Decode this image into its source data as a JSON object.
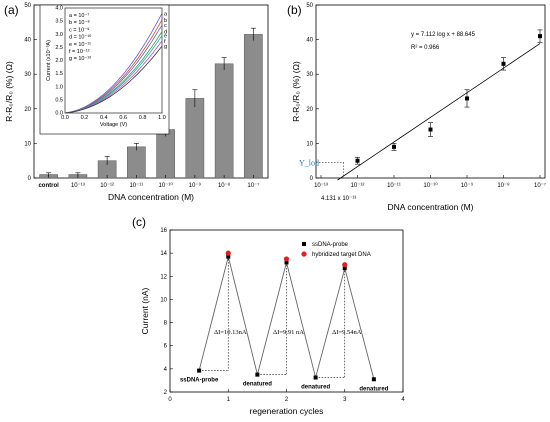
{
  "chart_data": [
    {
      "panel": "(a)",
      "type": "bar",
      "xlabel": "DNA concentration (M)",
      "ylabel": "R-R₀/R₀ (%) (Ω)",
      "categories": [
        "control",
        "10⁻¹³",
        "10⁻¹²",
        "10⁻¹¹",
        "10⁻¹⁰",
        "10⁻⁹",
        "10⁻⁸",
        "10⁻⁷"
      ],
      "values": [
        1.0,
        1.0,
        5.0,
        9.0,
        14.0,
        23.0,
        33.0,
        41.5
      ],
      "errors": [
        0.5,
        0.5,
        1.2,
        1.0,
        2.0,
        2.5,
        1.8,
        1.8
      ],
      "ylim": [
        0,
        50
      ],
      "yticks": [
        "0",
        "10",
        "20",
        "30",
        "40",
        "50"
      ],
      "color": "#8c8c8c",
      "inset": {
        "type": "line",
        "xlabel": "Voltage (V)",
        "ylabel": "Current (x10⁻³A)",
        "xlim": [
          0,
          1.0
        ],
        "ylim": [
          0,
          4.0
        ],
        "xticks": [
          "0.0",
          "0.2",
          "0.4",
          "0.6",
          "0.8",
          "1.0"
        ],
        "yticks": [
          "0.0",
          "0.5",
          "1.0",
          "1.5",
          "2.0",
          "2.5",
          "3.0",
          "3.5",
          "4.0"
        ],
        "legend": [
          "a = 10⁻⁷",
          "b = 10⁻⁸",
          "c = 10⁻⁹",
          "d = 10⁻¹⁰",
          "e = 10⁻¹¹",
          "f = 10⁻¹²",
          "g = 10⁻¹³"
        ],
        "series": [
          {
            "name": "a",
            "end": 3.8,
            "color": "#6b4fd8"
          },
          {
            "name": "b",
            "end": 3.55,
            "color": "#d04a3a"
          },
          {
            "name": "c",
            "end": 3.35,
            "color": "#4a70c0"
          },
          {
            "name": "d",
            "end": 3.1,
            "color": "#3a9a4a"
          },
          {
            "name": "e",
            "end": 2.95,
            "color": "#2aa8b0"
          },
          {
            "name": "f",
            "end": 2.75,
            "color": "#c050c0"
          },
          {
            "name": "g",
            "end": 2.55,
            "color": "#333333"
          }
        ]
      }
    },
    {
      "panel": "(b)",
      "type": "scatter",
      "xlabel": "DNA concentration (M)",
      "ylabel": "R-R₀/R₀ (%) (Ω)",
      "x_exp": [
        -12,
        -11,
        -10,
        -9,
        -8,
        -7
      ],
      "y": [
        5.0,
        9.0,
        14.0,
        23.0,
        33.0,
        41.0
      ],
      "errors": [
        1.0,
        1.0,
        2.0,
        2.5,
        1.8,
        1.8
      ],
      "xlim_exp": [
        -13,
        -7
      ],
      "xticks": [
        "10⁻¹³",
        "10⁻¹²",
        "10⁻¹¹",
        "10⁻¹⁰",
        "10⁻⁹",
        "10⁻⁸",
        "10⁻⁷"
      ],
      "ylim": [
        0,
        50
      ],
      "yticks": [
        "0",
        "10",
        "20",
        "30",
        "40",
        "50"
      ],
      "fit": {
        "equation": "y = 7.112 log x + 88.645",
        "r2": "R² = 0.966",
        "slope": 7.112,
        "intercept": 88.645
      },
      "lod_label": "Y_lod",
      "lod_value": "4.131 x 10⁻¹³",
      "lod_y": 4.5
    },
    {
      "panel": "(c)",
      "type": "line",
      "xlabel": "regeneration cycles",
      "ylabel": "Current (nA)",
      "xlim": [
        0,
        4
      ],
      "ylim": [
        2,
        16
      ],
      "xticks": [
        "0",
        "1",
        "2",
        "3",
        "4"
      ],
      "yticks": [
        "2",
        "4",
        "6",
        "8",
        "10",
        "12",
        "14",
        "16"
      ],
      "legend": [
        {
          "label": "ssDNA-probe",
          "color": "#000000",
          "marker": "square"
        },
        {
          "label": "hybridized target DNA",
          "color": "#e02020",
          "marker": "circle"
        }
      ],
      "points": [
        {
          "x": 0.5,
          "y": 3.85,
          "kind": "probe",
          "label": "ssDNA-probe"
        },
        {
          "x": 1.0,
          "y": 13.7,
          "kind": "probe",
          "label": ""
        },
        {
          "x": 1.0,
          "y": 14.0,
          "kind": "hybrid",
          "label": ""
        },
        {
          "x": 1.5,
          "y": 3.5,
          "kind": "probe",
          "label": "denatured"
        },
        {
          "x": 2.0,
          "y": 13.2,
          "kind": "probe",
          "label": ""
        },
        {
          "x": 2.0,
          "y": 13.5,
          "kind": "hybrid",
          "label": ""
        },
        {
          "x": 2.5,
          "y": 3.25,
          "kind": "probe",
          "label": "denatured"
        },
        {
          "x": 3.0,
          "y": 12.7,
          "kind": "probe",
          "label": ""
        },
        {
          "x": 3.0,
          "y": 13.0,
          "kind": "hybrid",
          "label": ""
        },
        {
          "x": 3.5,
          "y": 3.1,
          "kind": "probe",
          "label": "denatured"
        }
      ],
      "delta_labels": [
        {
          "x": 1.0,
          "text": "ΔI=10.13nA"
        },
        {
          "x": 2.0,
          "text": "ΔI=9.91 nA"
        },
        {
          "x": 3.0,
          "text": "ΔI=9.54nA"
        }
      ]
    }
  ]
}
